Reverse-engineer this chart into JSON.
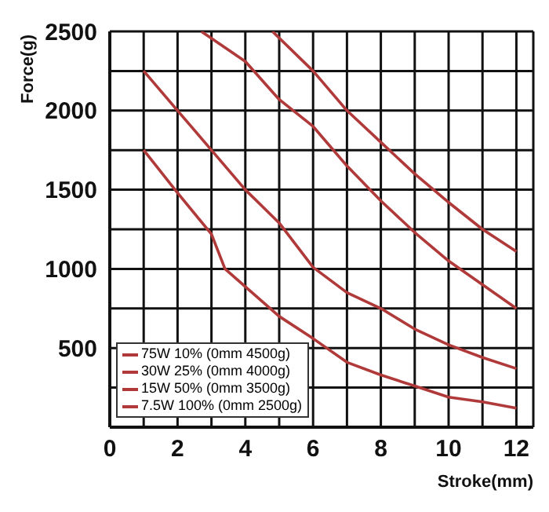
{
  "chart_data": {
    "type": "line",
    "xlabel": "Stroke(mm)",
    "ylabel": "Force(g)",
    "xlim": [
      0,
      12.5
    ],
    "ylim": [
      0,
      2500
    ],
    "xticks": [
      0,
      {
        "value": 1,
        "label": null
      },
      2,
      {
        "value": 3,
        "label": null
      },
      4,
      {
        "value": 5,
        "label": null
      },
      6,
      {
        "value": 7,
        "label": null
      },
      8,
      {
        "value": 9,
        "label": null
      },
      10,
      {
        "value": 11,
        "label": null
      },
      12
    ],
    "yticks": [
      {
        "value": 0,
        "label": null
      },
      {
        "value": 250,
        "label": null
      },
      500,
      {
        "value": 750,
        "label": null
      },
      1000,
      {
        "value": 1250,
        "label": null
      },
      1500,
      {
        "value": 1750,
        "label": null
      },
      2000,
      {
        "value": 2250,
        "label": null
      },
      2500
    ],
    "grid": true,
    "legend": "bottom left",
    "marker": "none",
    "line_style": "solid",
    "series": [
      {
        "name": "75W 10% (0mm 4500g)",
        "color": "#b03a3a",
        "x": [
          4.8,
          6,
          7,
          8,
          9,
          10,
          11,
          12
        ],
        "values": [
          2500,
          2250,
          2000,
          1800,
          1600,
          1420,
          1250,
          1110
        ]
      },
      {
        "name": "30W 25% (0mm 4000g)",
        "color": "#b03a3a",
        "x": [
          2.7,
          4,
          5,
          6,
          7,
          8,
          9,
          10,
          11,
          12
        ],
        "values": [
          2500,
          2310,
          2070,
          1900,
          1650,
          1430,
          1230,
          1050,
          900,
          750
        ]
      },
      {
        "name": "15W 50% (0mm 3500g)",
        "color": "#b03a3a",
        "x": [
          1,
          2,
          3,
          4,
          5,
          6,
          7,
          8,
          9,
          10,
          11,
          12
        ],
        "values": [
          2250,
          2000,
          1750,
          1500,
          1290,
          1010,
          850,
          750,
          620,
          520,
          440,
          370
        ]
      },
      {
        "name": "7.5W 100% (0mm 2500g)",
        "color": "#b03a3a",
        "x": [
          1,
          2,
          3,
          3.4,
          5,
          6,
          7,
          8,
          9,
          10,
          11,
          12
        ],
        "values": [
          1750,
          1480,
          1220,
          1000,
          700,
          560,
          410,
          330,
          260,
          190,
          160,
          120
        ]
      }
    ]
  }
}
